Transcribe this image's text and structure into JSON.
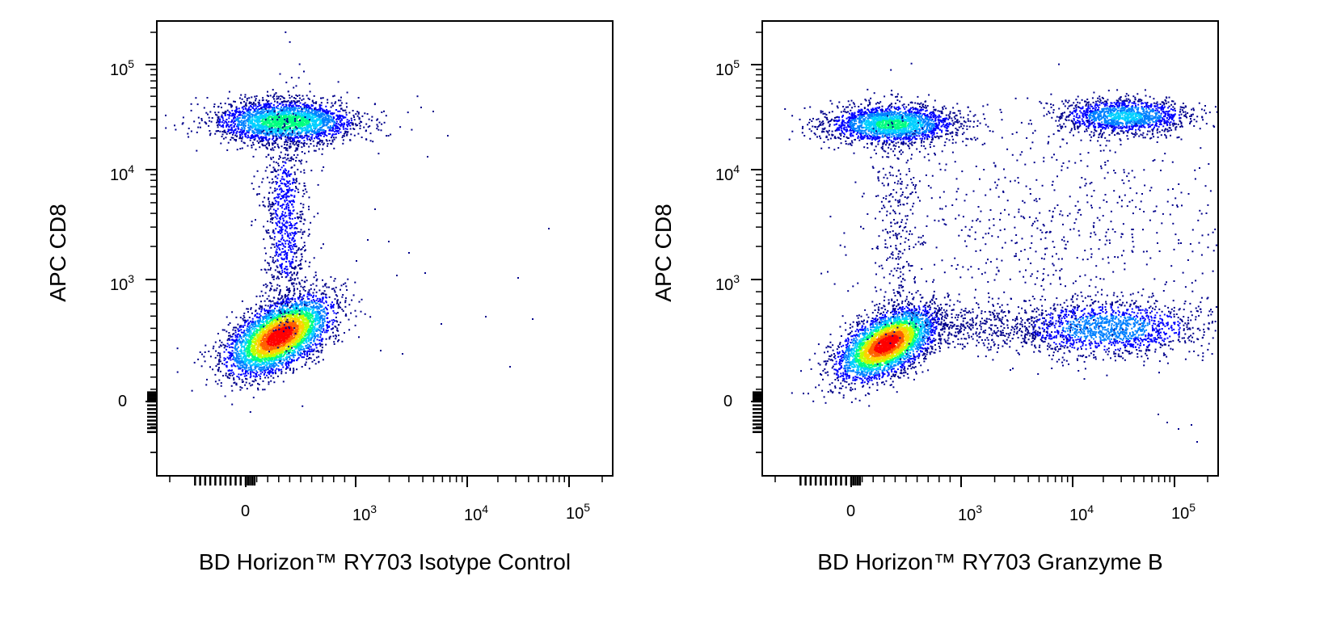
{
  "chart_data": [
    {
      "type": "scatter",
      "style": "density-pseudocolor",
      "xlabel": "BD Horizon™ RY703 Isotype Control",
      "ylabel": "APC CD8",
      "x_scale": "biexponential",
      "y_scale": "biexponential",
      "xlim": [
        -300,
        200000
      ],
      "ylim": [
        -200,
        200000
      ],
      "x_ticks": [
        {
          "value": 0,
          "label": "0"
        },
        {
          "value": 1000,
          "base": "10",
          "exp": "3"
        },
        {
          "value": 10000,
          "base": "10",
          "exp": "4"
        },
        {
          "value": 100000,
          "base": "10",
          "exp": "5"
        }
      ],
      "y_ticks": [
        {
          "value": 0,
          "label": "0"
        },
        {
          "value": 1000,
          "base": "10",
          "exp": "3"
        },
        {
          "value": 10000,
          "base": "10",
          "exp": "4"
        },
        {
          "value": 100000,
          "base": "10",
          "exp": "5"
        }
      ],
      "populations": [
        {
          "name_on_chart": "",
          "x_center": 250,
          "y_center": 28000,
          "relative_density": 0.55
        },
        {
          "name_on_chart": "",
          "x_center": 180,
          "y_center": 300,
          "relative_density": 1.0
        },
        {
          "name_on_chart": "",
          "x_center": 200,
          "y_center": 3000,
          "relative_density": 0.15
        }
      ]
    },
    {
      "type": "scatter",
      "style": "density-pseudocolor",
      "xlabel": "BD Horizon™ RY703 Granzyme B",
      "ylabel": "APC CD8",
      "x_scale": "biexponential",
      "y_scale": "biexponential",
      "xlim": [
        -300,
        200000
      ],
      "ylim": [
        -200,
        200000
      ],
      "x_ticks": [
        {
          "value": 0,
          "label": "0"
        },
        {
          "value": 1000,
          "base": "10",
          "exp": "3"
        },
        {
          "value": 10000,
          "base": "10",
          "exp": "4"
        },
        {
          "value": 100000,
          "base": "10",
          "exp": "5"
        }
      ],
      "y_ticks": [
        {
          "value": 0,
          "label": "0"
        },
        {
          "value": 1000,
          "base": "10",
          "exp": "3"
        },
        {
          "value": 10000,
          "base": "10",
          "exp": "4"
        },
        {
          "value": 100000,
          "base": "10",
          "exp": "5"
        }
      ],
      "populations": [
        {
          "name_on_chart": "",
          "x_center": 300,
          "y_center": 26000,
          "relative_density": 0.5
        },
        {
          "name_on_chart": "",
          "x_center": 25000,
          "y_center": 30000,
          "relative_density": 0.35
        },
        {
          "name_on_chart": "",
          "x_center": 200,
          "y_center": 280,
          "relative_density": 1.0
        },
        {
          "name_on_chart": "",
          "x_center": 30000,
          "y_center": 400,
          "relative_density": 0.3
        },
        {
          "name_on_chart": "",
          "x_center": 15000,
          "y_center": 3000,
          "relative_density": 0.08
        }
      ]
    }
  ],
  "colors": {
    "density_scale": [
      "#00008b",
      "#0000ff",
      "#0080ff",
      "#00d0ff",
      "#00ff80",
      "#c0ff00",
      "#ffd000",
      "#ff6000",
      "#ff0000"
    ],
    "axis": "#000000"
  }
}
